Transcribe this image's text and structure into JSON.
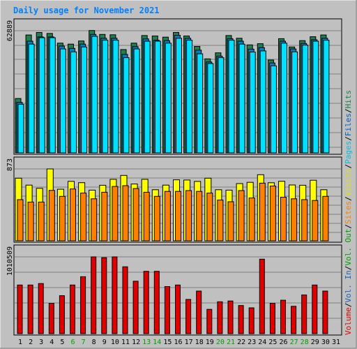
{
  "title": "Daily usage for November 2021",
  "colors": {
    "background": "#C0C0C0",
    "title": "#0080FF",
    "hits": "#1E8050",
    "files": "#0080C0",
    "pages": "#00E0FF",
    "visits": "#FFFF00",
    "sites": "#FF8000",
    "volume": "#E00000",
    "day_normal": "#000000",
    "day_weekend": "#00A000"
  },
  "panels": {
    "top": {
      "max_label": "62889"
    },
    "middle": {
      "max_label": "873"
    },
    "bottom": {
      "max_label": "1010509"
    }
  },
  "right_legend": [
    {
      "text": "Volume",
      "color": "#E00000"
    },
    {
      "text": "/",
      "color": "#000000"
    },
    {
      "text": "Vol. In",
      "color": "#2060C0"
    },
    {
      "text": "/",
      "color": "#000000"
    },
    {
      "text": "Vol. Out",
      "color": "#00A000"
    },
    {
      "text": "/",
      "color": "#000000"
    },
    {
      "text": "Sites",
      "color": "#FF8000"
    },
    {
      "text": "/",
      "color": "#000000"
    },
    {
      "text": "Visits",
      "color": "#E0E000"
    },
    {
      "text": "/",
      "color": "#000000"
    },
    {
      "text": "Pages",
      "color": "#00C0E0"
    },
    {
      "text": "/",
      "color": "#000000"
    },
    {
      "text": "Files",
      "color": "#0060C0"
    },
    {
      "text": "/",
      "color": "#000000"
    },
    {
      "text": "Hits",
      "color": "#1E8050"
    }
  ],
  "chart_data": {
    "type": "bar",
    "title": "Daily usage for November 2021",
    "categories": [
      "1",
      "2",
      "3",
      "4",
      "5",
      "6",
      "7",
      "8",
      "9",
      "10",
      "11",
      "12",
      "13",
      "14",
      "15",
      "16",
      "17",
      "18",
      "19",
      "20",
      "21",
      "22",
      "23",
      "24",
      "25",
      "26",
      "27",
      "28",
      "29",
      "30",
      "31"
    ],
    "weekend_days": [
      "6",
      "7",
      "13",
      "14",
      "20",
      "21",
      "27",
      "28"
    ],
    "panels": [
      {
        "name": "top",
        "ymax": 62889,
        "series": [
          {
            "name": "Hits",
            "values": [
              28000,
              60700,
              62000,
              61500,
              56500,
              56000,
              57600,
              63000,
              61000,
              60800,
              53200,
              56500,
              60400,
              60200,
              59600,
              62000,
              60200,
              54800,
              48400,
              51500,
              60400,
              59000,
              55600,
              56200,
              47800,
              58800,
              54500,
              57800,
              59800,
              60700,
              0
            ]
          },
          {
            "name": "Files",
            "values": [
              26000,
              57500,
              59700,
              59700,
              55000,
              53800,
              56000,
              61000,
              59000,
              59000,
              50700,
              54700,
              58700,
              58000,
              57800,
              60500,
              59000,
              52900,
              46800,
              49800,
              58800,
              57500,
              53400,
              54200,
              46300,
              57500,
              53500,
              56300,
              58200,
              59000,
              0
            ]
          },
          {
            "name": "Pages",
            "values": [
              25000,
              56000,
              59300,
              59300,
              53500,
              52000,
              54500,
              60000,
              58000,
              58000,
              49000,
              53500,
              57500,
              57500,
              56500,
              59000,
              58000,
              51000,
              46000,
              49000,
              58000,
              56000,
              51900,
              52500,
              44800,
              56500,
              52000,
              55500,
              57500,
              58000,
              0
            ]
          }
        ]
      },
      {
        "name": "middle",
        "ymax": 873,
        "series": [
          {
            "name": "Visits",
            "values": [
              760,
              676,
              637,
              873,
              626,
              722,
              706,
              615,
              675,
              747,
              794,
              690,
              747,
              620,
              676,
              741,
              738,
              721,
              760,
              620,
              615,
              695,
              710,
              803,
              705,
              723,
              678,
              675,
              736,
              620,
              0
            ]
          },
          {
            "name": "Sites",
            "values": [
              500,
              470,
              470,
              613,
              540,
              630,
              580,
              510,
              590,
              660,
              670,
              635,
              590,
              540,
              600,
              600,
              610,
              600,
              580,
              495,
              475,
              610,
              520,
              700,
              665,
              530,
              510,
              500,
              490,
              540,
              0
            ]
          }
        ]
      },
      {
        "name": "bottom",
        "ymax": 1010509,
        "series": [
          {
            "name": "Volume",
            "values": [
              640000,
              640000,
              660000,
              400000,
              500000,
              640000,
              750000,
              1010509,
              1000000,
              1010509,
              880000,
              690000,
              820000,
              820000,
              620000,
              640000,
              450000,
              560000,
              320000,
              420000,
              430000,
              370000,
              340000,
              980000,
              400000,
              440000,
              360000,
              510000,
              640000,
              560000,
              0
            ]
          }
        ]
      }
    ]
  }
}
